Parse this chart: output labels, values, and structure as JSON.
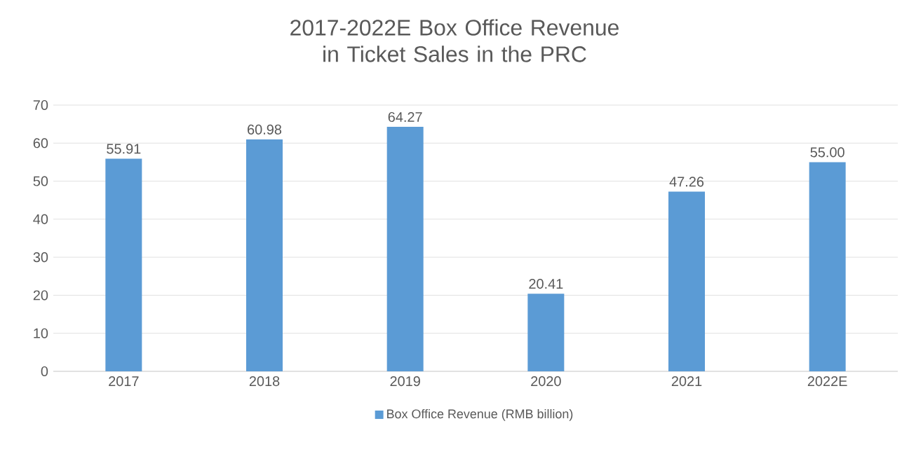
{
  "chart_data": {
    "type": "bar",
    "title": "2017-2022E Box Office Revenue in Ticket Sales in the PRC",
    "categories": [
      "2017",
      "2018",
      "2019",
      "2020",
      "2021",
      "2022E"
    ],
    "series": [
      {
        "name": "Box Office Revenue (RMB billion)",
        "color": "#5b9bd5",
        "values": [
          55.91,
          60.98,
          64.27,
          20.41,
          47.26,
          55.0
        ],
        "value_labels": [
          "55.91",
          "60.98",
          "64.27",
          "20.41",
          "47.26",
          "55.00"
        ]
      }
    ],
    "ylim": [
      0,
      70
    ],
    "yticks": [
      0,
      10,
      20,
      30,
      40,
      50,
      60,
      70
    ],
    "grid": "y",
    "legend": "bottom"
  }
}
